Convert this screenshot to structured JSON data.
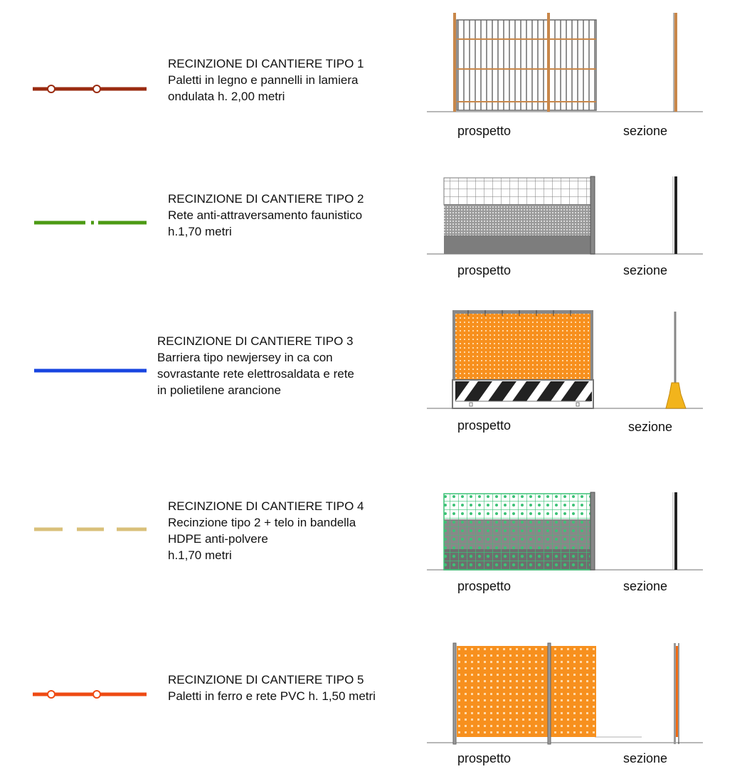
{
  "fences": [
    {
      "title": "RECINZIONE DI CANTIERE TIPO 1",
      "lines": [
        "Paletti in legno e pannelli in lamiera",
        "ondulata h. 2,00 metri"
      ],
      "legend_color": "#9a2b10",
      "legend_style": "solid-with-circles",
      "label_elevation": "prospetto",
      "label_section": "sezione"
    },
    {
      "title": "RECINZIONE DI CANTIERE TIPO 2",
      "lines": [
        "Rete anti-attraversamento faunistico",
        "h.1,70 metri"
      ],
      "legend_color": "#4c9a14",
      "legend_style": "dash-dot",
      "label_elevation": "prospetto",
      "label_section": "sezione"
    },
    {
      "title": "RECINZIONE DI CANTIERE TIPO 3",
      "lines": [
        "Barriera tipo newjersey in ca con",
        "sovrastante rete elettrosaldata e rete",
        "in polietilene arancione"
      ],
      "legend_color": "#1845e0",
      "legend_style": "solid",
      "label_elevation": "prospetto",
      "label_section": "sezione"
    },
    {
      "title": "RECINZIONE DI CANTIERE TIPO 4",
      "lines": [
        "Recinzione tipo 2 + telo in bandella",
        "HDPE anti-polvere",
        "h.1,70 metri"
      ],
      "legend_color": "#d9c07a",
      "legend_style": "dashed",
      "label_elevation": "prospetto",
      "label_section": "sezione"
    },
    {
      "title": "RECINZIONE DI CANTIERE TIPO 5",
      "lines": [
        "Paletti in ferro e rete PVC h. 1,50 metri"
      ],
      "legend_color": "#ee4a12",
      "legend_style": "solid-with-circles",
      "label_elevation": "prospetto",
      "label_section": "sezione"
    }
  ],
  "colors": {
    "ground": "#b8b8b8",
    "wood": "#c8874a",
    "grid": "#6a6a6a",
    "mesh_dark": "#7a7a7a",
    "orange": "#f7901e",
    "green_mesh": "#3cc276",
    "newjersey_yellow": "#f2b41c"
  }
}
